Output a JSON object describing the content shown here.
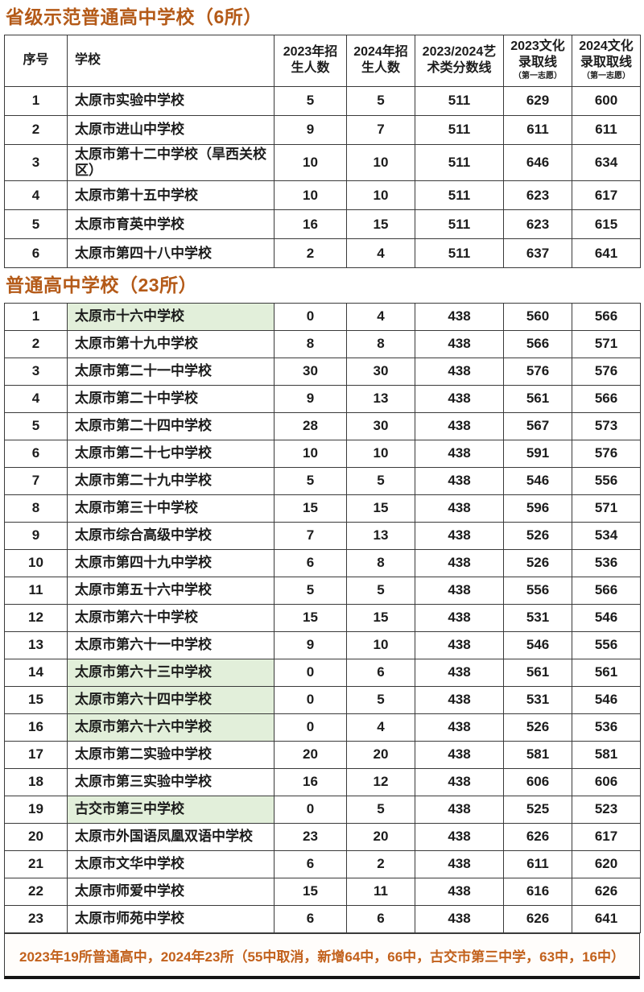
{
  "colors": {
    "title": "#b45a18",
    "footer_text": "#c2611c",
    "highlight_green": "#e2efda",
    "border": "#3a3a3a"
  },
  "header": {
    "index": "序号",
    "school": "学校",
    "enroll_2023": "2023年招生人数",
    "enroll_2024": "2024年招生人数",
    "art_line": "2023/2024艺术类分数线",
    "cut_2023": "2023文化录取线",
    "cut_2024": "2024文化录取取线",
    "first_choice_note": "（第一志愿）"
  },
  "table1": {
    "title": "省级示范普通高中学校（6所）",
    "rows": [
      {
        "no": "1",
        "school": "太原市实验中学校",
        "e2023": "5",
        "e2024": "5",
        "art": "511",
        "c2023": "629",
        "c2024": "600",
        "highlight": false
      },
      {
        "no": "2",
        "school": "太原市进山中学校",
        "e2023": "9",
        "e2024": "7",
        "art": "511",
        "c2023": "611",
        "c2024": "611",
        "highlight": false
      },
      {
        "no": "3",
        "school": "太原市第十二中学校（旱西关校区）",
        "e2023": "10",
        "e2024": "10",
        "art": "511",
        "c2023": "646",
        "c2024": "634",
        "highlight": false
      },
      {
        "no": "4",
        "school": "太原市第十五中学校",
        "e2023": "10",
        "e2024": "10",
        "art": "511",
        "c2023": "623",
        "c2024": "617",
        "highlight": false
      },
      {
        "no": "5",
        "school": "太原市育英中学校",
        "e2023": "16",
        "e2024": "15",
        "art": "511",
        "c2023": "623",
        "c2024": "615",
        "highlight": false
      },
      {
        "no": "6",
        "school": "太原市第四十八中学校",
        "e2023": "2",
        "e2024": "4",
        "art": "511",
        "c2023": "637",
        "c2024": "641",
        "highlight": false
      }
    ]
  },
  "table2": {
    "title": "普通高中学校（23所）",
    "rows": [
      {
        "no": "1",
        "school": "太原市十六中学校",
        "e2023": "0",
        "e2024": "4",
        "art": "438",
        "c2023": "560",
        "c2024": "566",
        "highlight": true
      },
      {
        "no": "2",
        "school": "太原市第十九中学校",
        "e2023": "8",
        "e2024": "8",
        "art": "438",
        "c2023": "566",
        "c2024": "571",
        "highlight": false
      },
      {
        "no": "3",
        "school": "太原市第二十一中学校",
        "e2023": "30",
        "e2024": "30",
        "art": "438",
        "c2023": "576",
        "c2024": "576",
        "highlight": false
      },
      {
        "no": "4",
        "school": "太原市第二十中学校",
        "e2023": "9",
        "e2024": "13",
        "art": "438",
        "c2023": "561",
        "c2024": "566",
        "highlight": false
      },
      {
        "no": "5",
        "school": "太原市第二十四中学校",
        "e2023": "28",
        "e2024": "30",
        "art": "438",
        "c2023": "567",
        "c2024": "573",
        "highlight": false
      },
      {
        "no": "6",
        "school": "太原市第二十七中学校",
        "e2023": "10",
        "e2024": "10",
        "art": "438",
        "c2023": "591",
        "c2024": "576",
        "highlight": false
      },
      {
        "no": "7",
        "school": "太原市第二十九中学校",
        "e2023": "5",
        "e2024": "5",
        "art": "438",
        "c2023": "546",
        "c2024": "556",
        "highlight": false
      },
      {
        "no": "8",
        "school": "太原市第三十中学校",
        "e2023": "15",
        "e2024": "15",
        "art": "438",
        "c2023": "596",
        "c2024": "571",
        "highlight": false
      },
      {
        "no": "9",
        "school": "太原市综合高级中学校",
        "e2023": "7",
        "e2024": "13",
        "art": "438",
        "c2023": "526",
        "c2024": "534",
        "highlight": false
      },
      {
        "no": "10",
        "school": "太原市第四十九中学校",
        "e2023": "6",
        "e2024": "8",
        "art": "438",
        "c2023": "526",
        "c2024": "536",
        "highlight": false
      },
      {
        "no": "11",
        "school": "太原市第五十六中学校",
        "e2023": "5",
        "e2024": "5",
        "art": "438",
        "c2023": "556",
        "c2024": "566",
        "highlight": false
      },
      {
        "no": "12",
        "school": "太原市第六十中学校",
        "e2023": "15",
        "e2024": "15",
        "art": "438",
        "c2023": "531",
        "c2024": "546",
        "highlight": false
      },
      {
        "no": "13",
        "school": "太原市第六十一中学校",
        "e2023": "9",
        "e2024": "10",
        "art": "438",
        "c2023": "546",
        "c2024": "556",
        "highlight": false
      },
      {
        "no": "14",
        "school": "太原市第六十三中学校",
        "e2023": "0",
        "e2024": "6",
        "art": "438",
        "c2023": "561",
        "c2024": "561",
        "highlight": true
      },
      {
        "no": "15",
        "school": "太原市第六十四中学校",
        "e2023": "0",
        "e2024": "5",
        "art": "438",
        "c2023": "531",
        "c2024": "546",
        "highlight": true
      },
      {
        "no": "16",
        "school": "太原市第六十六中学校",
        "e2023": "0",
        "e2024": "4",
        "art": "438",
        "c2023": "526",
        "c2024": "536",
        "highlight": true
      },
      {
        "no": "17",
        "school": "太原市第二实验中学校",
        "e2023": "20",
        "e2024": "20",
        "art": "438",
        "c2023": "581",
        "c2024": "581",
        "highlight": false
      },
      {
        "no": "18",
        "school": "太原市第三实验中学校",
        "e2023": "16",
        "e2024": "12",
        "art": "438",
        "c2023": "606",
        "c2024": "606",
        "highlight": false
      },
      {
        "no": "19",
        "school": "古交市第三中学校",
        "e2023": "0",
        "e2024": "5",
        "art": "438",
        "c2023": "525",
        "c2024": "523",
        "highlight": true
      },
      {
        "no": "20",
        "school": "太原市外国语凤凰双语中学校",
        "e2023": "23",
        "e2024": "20",
        "art": "438",
        "c2023": "626",
        "c2024": "617",
        "highlight": false
      },
      {
        "no": "21",
        "school": "太原市文华中学校",
        "e2023": "6",
        "e2024": "2",
        "art": "438",
        "c2023": "611",
        "c2024": "620",
        "highlight": false
      },
      {
        "no": "22",
        "school": "太原市师爱中学校",
        "e2023": "15",
        "e2024": "11",
        "art": "438",
        "c2023": "616",
        "c2024": "626",
        "highlight": false
      },
      {
        "no": "23",
        "school": "太原市师苑中学校",
        "e2023": "6",
        "e2024": "6",
        "art": "438",
        "c2023": "626",
        "c2024": "641",
        "highlight": false
      }
    ]
  },
  "footer": {
    "text": "2023年19所普通高中，2024年23所（55中取消，新增64中，66中，古交市第三中学，63中，16中）"
  }
}
